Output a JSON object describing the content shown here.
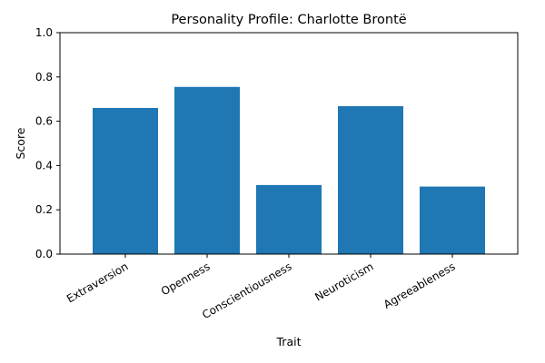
{
  "chart_data": {
    "type": "bar",
    "title": "Personality Profile: Charlotte Brontë",
    "xlabel": "Trait",
    "ylabel": "Score",
    "categories": [
      "Extraversion",
      "Openness",
      "Conscientiousness",
      "Neuroticism",
      "Agreeableness"
    ],
    "values": [
      0.66,
      0.755,
      0.312,
      0.668,
      0.305
    ],
    "ylim": [
      0,
      1
    ],
    "yticks": [
      "0.0",
      "0.2",
      "0.4",
      "0.6",
      "0.8",
      "1.0"
    ],
    "grid": false,
    "legend": "none",
    "bar_color": "#1f77b4"
  }
}
